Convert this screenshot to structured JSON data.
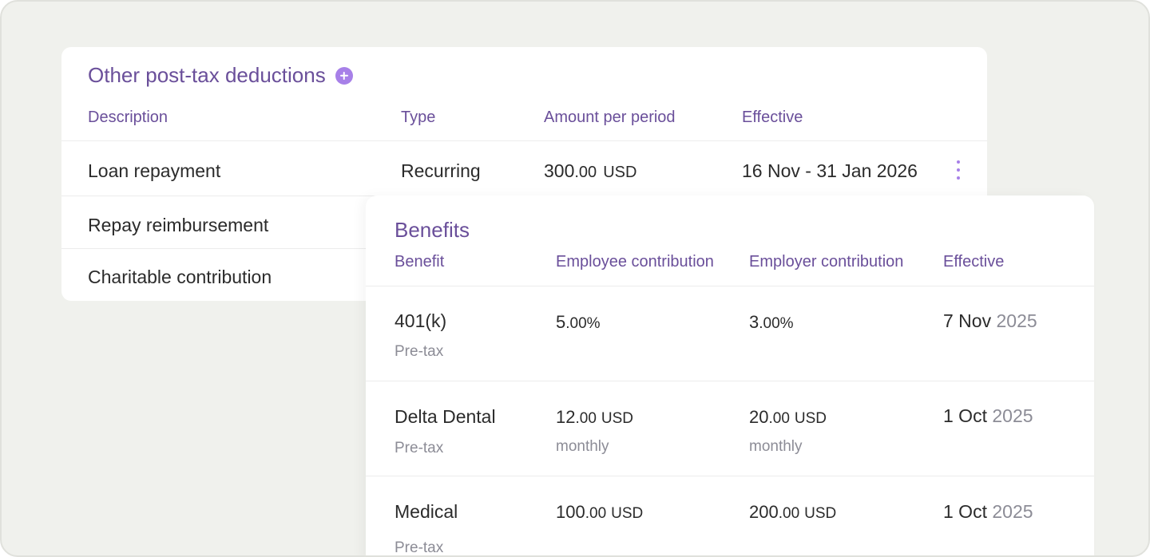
{
  "deductions": {
    "title": "Other post-tax deductions",
    "columns": {
      "description": "Description",
      "type": "Type",
      "amount": "Amount per period",
      "effective": "Effective"
    },
    "rows": [
      {
        "description": "Loan repayment",
        "type": "Recurring",
        "amount_int": "300",
        "amount_dec": ".00",
        "currency": "USD",
        "effective": "16 Nov - 31 Jan 2026"
      },
      {
        "description": "Repay reimbursement"
      },
      {
        "description": "Charitable contribution"
      }
    ]
  },
  "benefits": {
    "title": "Benefits",
    "columns": {
      "benefit": "Benefit",
      "employee": "Employee contribution",
      "employer": "Employer contribution",
      "effective": "Effective"
    },
    "rows": [
      {
        "name": "401(k)",
        "tax": "Pre-tax",
        "employee_int": "5",
        "employee_dec": ".00%",
        "employee_unit": "",
        "employee_freq": "",
        "employer_int": "3",
        "employer_dec": ".00%",
        "employer_unit": "",
        "employer_freq": "",
        "date": "7 Nov",
        "year": "2025"
      },
      {
        "name": "Delta Dental",
        "tax": "Pre-tax",
        "employee_int": "12",
        "employee_dec": ".00",
        "employee_unit": "USD",
        "employee_freq": "monthly",
        "employer_int": "20",
        "employer_dec": ".00",
        "employer_unit": "USD",
        "employer_freq": "monthly",
        "date": "1 Oct",
        "year": "2025"
      },
      {
        "name": "Medical",
        "tax": "Pre-tax",
        "employee_int": "100",
        "employee_dec": ".00",
        "employee_unit": "USD",
        "employee_freq": "",
        "employer_int": "200",
        "employer_dec": ".00",
        "employer_unit": "USD",
        "employer_freq": "",
        "date": "1 Oct",
        "year": "2025"
      }
    ]
  },
  "theme": {
    "accent": "#6a4f9a",
    "accent_light": "#a780e8",
    "background": "#f0f1ed"
  }
}
